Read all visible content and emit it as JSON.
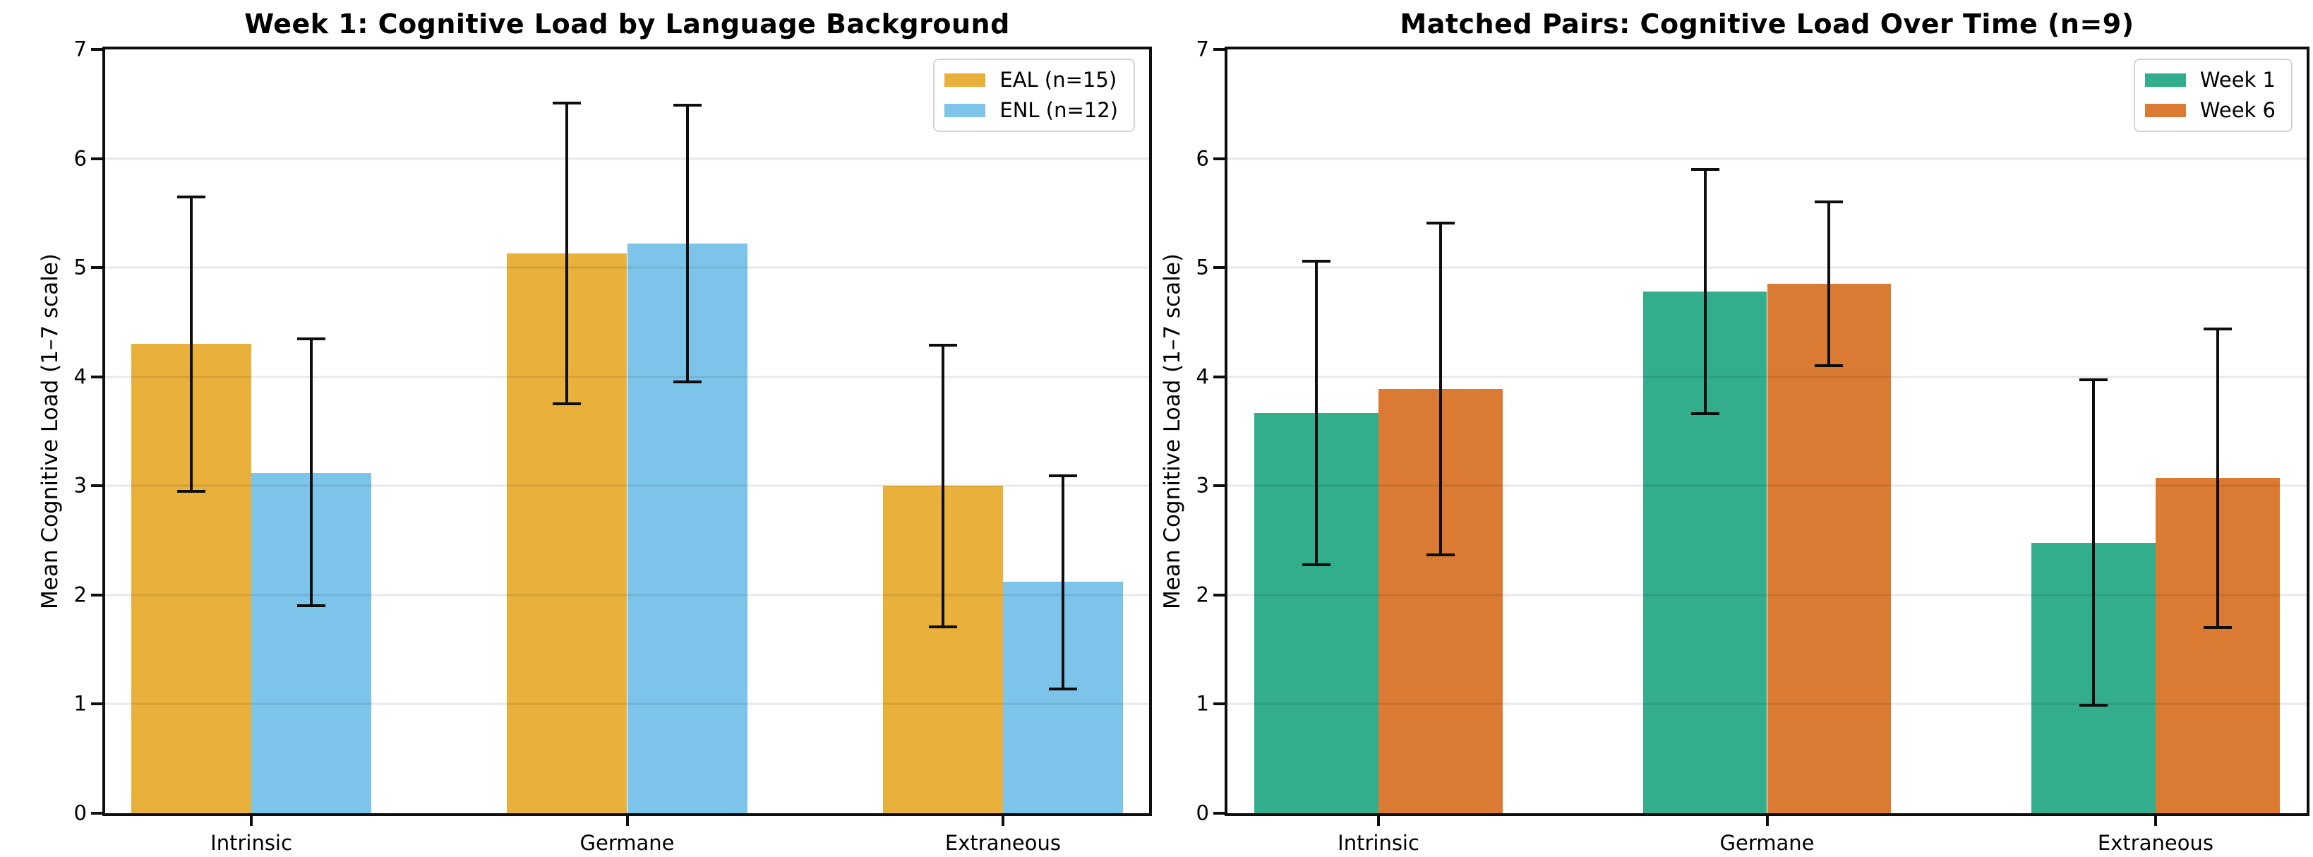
{
  "chart_data": [
    {
      "type": "bar",
      "title": "Week 1: Cognitive Load by Language Background",
      "xlabel": "",
      "ylabel": "Mean Cognitive Load (1–7 scale)",
      "categories": [
        "Intrinsic",
        "Germane",
        "Extraneous"
      ],
      "ylim": [
        0,
        7
      ],
      "yticks": [
        "0",
        "1",
        "2",
        "3",
        "4",
        "5",
        "6",
        "7"
      ],
      "grid": "horizontal",
      "legend_position": "upper-right",
      "error_bars": true,
      "series": [
        {
          "name": "EAL (n=15)",
          "color": "#EAB03C",
          "values": [
            4.3,
            5.13,
            3.0
          ],
          "err_low": [
            2.95,
            3.75,
            1.71
          ],
          "err_high": [
            5.65,
            6.51,
            4.29
          ]
        },
        {
          "name": "ENL (n=12)",
          "color": "#7DC4EB",
          "values": [
            3.12,
            5.22,
            2.12
          ],
          "err_low": [
            1.9,
            3.95,
            1.14
          ],
          "err_high": [
            4.35,
            6.49,
            3.09
          ]
        }
      ]
    },
    {
      "type": "bar",
      "title": "Matched Pairs: Cognitive Load Over Time (n=9)",
      "xlabel": "",
      "ylabel": "Mean Cognitive Load (1–7 scale)",
      "categories": [
        "Intrinsic",
        "Germane",
        "Extraneous"
      ],
      "ylim": [
        0,
        7
      ],
      "yticks": [
        "0",
        "1",
        "2",
        "3",
        "4",
        "5",
        "6",
        "7"
      ],
      "grid": "horizontal",
      "legend_position": "upper-right",
      "error_bars": true,
      "series": [
        {
          "name": "Week 1",
          "color": "#33AE8D",
          "values": [
            3.67,
            4.78,
            2.48
          ],
          "err_low": [
            2.28,
            3.66,
            0.99
          ],
          "err_high": [
            5.06,
            5.9,
            3.97
          ]
        },
        {
          "name": "Week 6",
          "color": "#DB7B33",
          "values": [
            3.89,
            4.85,
            3.07
          ],
          "err_low": [
            2.37,
            4.1,
            1.7
          ],
          "err_high": [
            5.41,
            5.6,
            4.44
          ]
        }
      ]
    }
  ]
}
